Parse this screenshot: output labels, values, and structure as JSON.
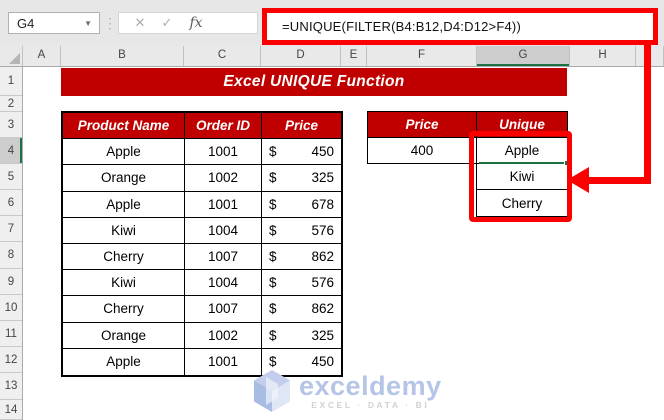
{
  "formula_bar": {
    "name_box_value": "G4",
    "cancel_icon": "✕",
    "enter_icon": "✓",
    "fx_label": "fx",
    "formula": "=UNIQUE(FILTER(B4:B12,D4:D12>F4))"
  },
  "grid": {
    "column_letters": [
      "A",
      "B",
      "C",
      "D",
      "E",
      "F",
      "G",
      "H"
    ],
    "row_numbers": [
      "1",
      "2",
      "3",
      "4",
      "5",
      "6",
      "7",
      "8",
      "9",
      "10",
      "11",
      "12",
      "13",
      "14"
    ],
    "selected_cell": "G4",
    "selected_column": "G",
    "selected_row": "4"
  },
  "title_banner": {
    "text": "Excel UNIQUE Function"
  },
  "products_table": {
    "headers": [
      "Product Name",
      "Order ID",
      "Price"
    ],
    "currency_symbol": "$",
    "rows": [
      {
        "product": "Apple",
        "order_id": "1001",
        "price": "450"
      },
      {
        "product": "Orange",
        "order_id": "1002",
        "price": "325"
      },
      {
        "product": "Apple",
        "order_id": "1001",
        "price": "678"
      },
      {
        "product": "Kiwi",
        "order_id": "1004",
        "price": "576"
      },
      {
        "product": "Cherry",
        "order_id": "1007",
        "price": "862"
      },
      {
        "product": "Kiwi",
        "order_id": "1004",
        "price": "576"
      },
      {
        "product": "Cherry",
        "order_id": "1007",
        "price": "862"
      },
      {
        "product": "Orange",
        "order_id": "1002",
        "price": "325"
      },
      {
        "product": "Apple",
        "order_id": "1001",
        "price": "450"
      }
    ]
  },
  "result_table": {
    "price_header": "Price",
    "unique_header": "Unique",
    "price_value": "400",
    "unique_values": [
      "Apple",
      "Kiwi",
      "Cherry"
    ]
  },
  "watermark": {
    "brand": "exceldemy",
    "tagline": "EXCEL · DATA · BI"
  },
  "colors": {
    "fill_dark_red": "#C00000",
    "annotation_red": "#FB0000",
    "selection_green": "#1D6F42",
    "header_gray": "#E9E9E9"
  }
}
